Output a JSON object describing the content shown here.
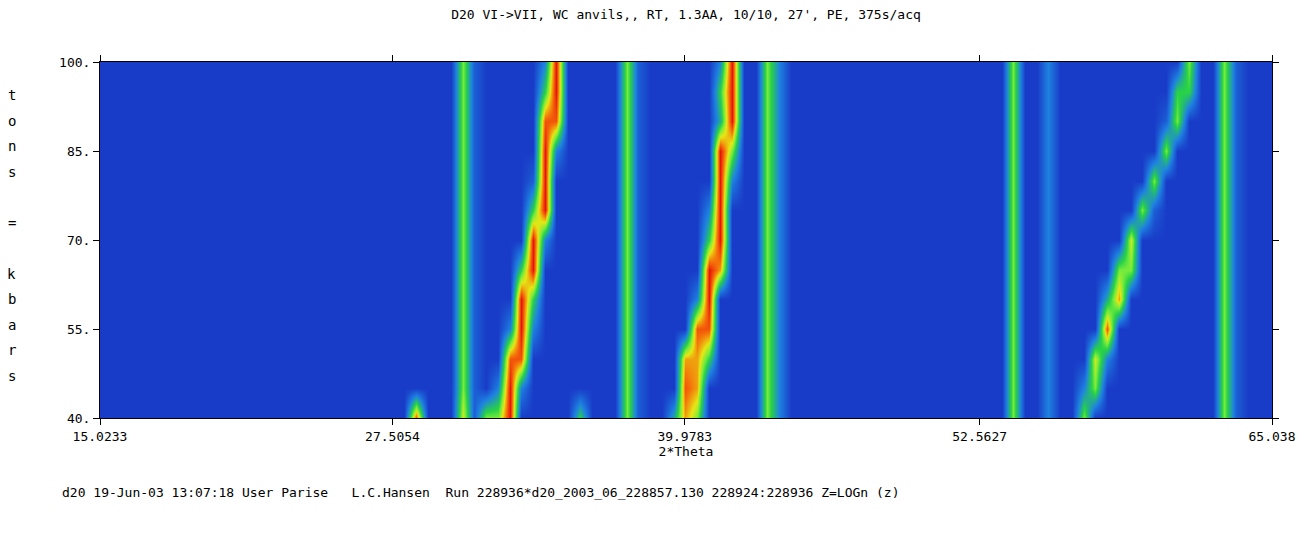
{
  "chart_data": {
    "type": "heatmap",
    "title": "D20 VI->VII, WC anvils,, RT, 1.3AA, 10/10, 27', PE, 375s/acq",
    "xlabel": "2*Theta",
    "ylabel": "tons = kbars",
    "footer": "d20 19-Jun-03 13:07:18 User Parise   L.C.Hansen  Run 228936*d20_2003_06_228857.130 228924:228936 Z=LOGn (z)",
    "xlim": [
      15.0233,
      65.038
    ],
    "xticks": [
      15.0233,
      27.5054,
      39.9783,
      52.5627,
      65.038
    ],
    "ylim": [
      40,
      100
    ],
    "yticks": [
      {
        "value": 40,
        "label": "40."
      },
      {
        "value": 55,
        "label": "55."
      },
      {
        "value": 70,
        "label": "70."
      },
      {
        "value": 85,
        "label": "85."
      },
      {
        "value": 100,
        "label": "100."
      }
    ],
    "zlim": [
      0,
      10
    ],
    "x": [
      15,
      15.5,
      16,
      16.5,
      17,
      17.5,
      18,
      18.5,
      19,
      19.5,
      20,
      20.5,
      21,
      21.5,
      22,
      22.5,
      23,
      23.5,
      24,
      24.5,
      25,
      25.5,
      26,
      26.5,
      27,
      27.5,
      28,
      28.5,
      29,
      29.5,
      30,
      30.5,
      31,
      31.5,
      32,
      32.5,
      33,
      33.5,
      34,
      34.5,
      35,
      35.5,
      36,
      36.5,
      37,
      37.5,
      38,
      38.5,
      39,
      39.5,
      40,
      40.5,
      41,
      41.5,
      42,
      42.5,
      43,
      43.5,
      44,
      44.5,
      45,
      45.5,
      46,
      46.5,
      47,
      47.5,
      48,
      48.5,
      49,
      49.5,
      50,
      50.5,
      51,
      51.5,
      52,
      52.5,
      53,
      53.5,
      54,
      54.5,
      55,
      55.5,
      56,
      56.5,
      57,
      57.5,
      58,
      58.5,
      59,
      59.5,
      60,
      60.5,
      61,
      61.5,
      62,
      62.5,
      63,
      63.5,
      64,
      64.5,
      65
    ],
    "y": [
      40,
      45,
      50,
      55,
      60,
      65,
      70,
      75,
      80,
      85,
      90,
      95,
      100
    ],
    "cells": [
      [
        1,
        1,
        1,
        1,
        1,
        1,
        1,
        1,
        1,
        1,
        1,
        1,
        1,
        1,
        1,
        1,
        1,
        1,
        1,
        1,
        1,
        1,
        1,
        1,
        1,
        1,
        1,
        9,
        1,
        1,
        1,
        7,
        2,
        6,
        6,
        10,
        1,
        1,
        1,
        1,
        1,
        5,
        1,
        1,
        1,
        6,
        2,
        1,
        1,
        4,
        8,
        6,
        1,
        1,
        1,
        1,
        1,
        6,
        3,
        1,
        1,
        1,
        1,
        1,
        1,
        1,
        1,
        1,
        1,
        1,
        1,
        1,
        1,
        1,
        1,
        1,
        1,
        1,
        6,
        1,
        1,
        3,
        1,
        1,
        6,
        1,
        1,
        1,
        1,
        1,
        1,
        1,
        1,
        1,
        1,
        1,
        6,
        2,
        1,
        1,
        1
      ],
      [
        1,
        1,
        1,
        1,
        1,
        1,
        1,
        1,
        1,
        1,
        1,
        1,
        1,
        1,
        1,
        1,
        1,
        1,
        1,
        1,
        1,
        1,
        1,
        1,
        1,
        1,
        1,
        1,
        1,
        1,
        1,
        6,
        2,
        1,
        3,
        10,
        3,
        1,
        1,
        1,
        1,
        1,
        1,
        1,
        1,
        6,
        2,
        1,
        1,
        1,
        9,
        8,
        1,
        1,
        1,
        1,
        1,
        6,
        3,
        1,
        1,
        1,
        1,
        1,
        1,
        1,
        1,
        1,
        1,
        1,
        1,
        1,
        1,
        1,
        1,
        1,
        1,
        1,
        6,
        1,
        1,
        3,
        1,
        1,
        3,
        6,
        1,
        1,
        1,
        1,
        1,
        1,
        1,
        1,
        1,
        1,
        6,
        2,
        1,
        1,
        1
      ],
      [
        1,
        1,
        1,
        1,
        1,
        1,
        1,
        1,
        1,
        1,
        1,
        1,
        1,
        1,
        1,
        1,
        1,
        1,
        1,
        1,
        1,
        1,
        1,
        1,
        1,
        1,
        1,
        1,
        1,
        1,
        1,
        6,
        2,
        1,
        1,
        9,
        9,
        1,
        1,
        1,
        1,
        1,
        1,
        1,
        1,
        6,
        2,
        1,
        1,
        1,
        8,
        8,
        5,
        1,
        1,
        1,
        1,
        6,
        3,
        1,
        1,
        1,
        1,
        1,
        1,
        1,
        1,
        1,
        1,
        1,
        1,
        1,
        1,
        1,
        1,
        1,
        1,
        1,
        6,
        1,
        1,
        3,
        1,
        1,
        1,
        7,
        3,
        1,
        1,
        1,
        1,
        1,
        1,
        1,
        1,
        1,
        6,
        2,
        1,
        1,
        1
      ],
      [
        1,
        1,
        1,
        1,
        1,
        1,
        1,
        1,
        1,
        1,
        1,
        1,
        1,
        1,
        1,
        1,
        1,
        1,
        1,
        1,
        1,
        1,
        1,
        1,
        1,
        1,
        1,
        1,
        1,
        1,
        1,
        6,
        2,
        1,
        1,
        3,
        10,
        3,
        1,
        1,
        1,
        1,
        1,
        1,
        1,
        6,
        2,
        1,
        1,
        1,
        1,
        9,
        9,
        1,
        1,
        1,
        1,
        6,
        3,
        1,
        1,
        1,
        1,
        1,
        1,
        1,
        1,
        1,
        1,
        1,
        1,
        1,
        1,
        1,
        1,
        1,
        1,
        1,
        6,
        1,
        1,
        3,
        1,
        1,
        1,
        1,
        9,
        1,
        1,
        1,
        1,
        1,
        1,
        1,
        1,
        1,
        6,
        2,
        1,
        1,
        1
      ],
      [
        1,
        1,
        1,
        1,
        1,
        1,
        1,
        1,
        1,
        1,
        1,
        1,
        1,
        1,
        1,
        1,
        1,
        1,
        1,
        1,
        1,
        1,
        1,
        1,
        1,
        1,
        1,
        1,
        1,
        1,
        1,
        6,
        2,
        1,
        1,
        1,
        10,
        5,
        1,
        1,
        1,
        1,
        1,
        1,
        1,
        6,
        2,
        1,
        1,
        1,
        1,
        3,
        10,
        1,
        1,
        1,
        1,
        6,
        3,
        1,
        1,
        1,
        1,
        1,
        1,
        1,
        1,
        1,
        1,
        1,
        1,
        1,
        1,
        1,
        1,
        1,
        1,
        1,
        6,
        1,
        1,
        3,
        1,
        1,
        1,
        1,
        4,
        8,
        1,
        1,
        1,
        1,
        1,
        1,
        1,
        1,
        6,
        2,
        1,
        1,
        1
      ],
      [
        1,
        1,
        1,
        1,
        1,
        1,
        1,
        1,
        1,
        1,
        1,
        1,
        1,
        1,
        1,
        1,
        1,
        1,
        1,
        1,
        1,
        1,
        1,
        1,
        1,
        1,
        1,
        1,
        1,
        1,
        1,
        6,
        2,
        1,
        1,
        1,
        5,
        10,
        1,
        1,
        1,
        1,
        1,
        1,
        1,
        6,
        2,
        1,
        1,
        1,
        1,
        1,
        10,
        8,
        1,
        1,
        1,
        6,
        3,
        1,
        1,
        1,
        1,
        1,
        1,
        1,
        1,
        1,
        1,
        1,
        1,
        1,
        1,
        1,
        1,
        1,
        1,
        1,
        6,
        1,
        1,
        3,
        1,
        1,
        1,
        1,
        1,
        6,
        6,
        1,
        1,
        1,
        1,
        1,
        1,
        1,
        6,
        2,
        1,
        1,
        1
      ],
      [
        1,
        1,
        1,
        1,
        1,
        1,
        1,
        1,
        1,
        1,
        1,
        1,
        1,
        1,
        1,
        1,
        1,
        1,
        1,
        1,
        1,
        1,
        1,
        1,
        1,
        1,
        1,
        1,
        1,
        1,
        1,
        6,
        2,
        1,
        1,
        1,
        1,
        10,
        3,
        1,
        1,
        1,
        1,
        1,
        1,
        6,
        2,
        1,
        1,
        1,
        1,
        1,
        5,
        10,
        1,
        1,
        1,
        6,
        3,
        1,
        1,
        1,
        1,
        1,
        1,
        1,
        1,
        1,
        1,
        1,
        1,
        1,
        1,
        1,
        1,
        1,
        1,
        1,
        6,
        1,
        1,
        3,
        1,
        1,
        1,
        1,
        1,
        1,
        7,
        1,
        1,
        1,
        1,
        1,
        1,
        1,
        6,
        2,
        1,
        1,
        1
      ],
      [
        1,
        1,
        1,
        1,
        1,
        1,
        1,
        1,
        1,
        1,
        1,
        1,
        1,
        1,
        1,
        1,
        1,
        1,
        1,
        1,
        1,
        1,
        1,
        1,
        1,
        1,
        1,
        1,
        1,
        1,
        1,
        6,
        2,
        1,
        1,
        1,
        1,
        5,
        10,
        1,
        1,
        1,
        1,
        1,
        1,
        6,
        2,
        1,
        1,
        1,
        1,
        1,
        3,
        10,
        1,
        1,
        1,
        6,
        3,
        1,
        1,
        1,
        1,
        1,
        1,
        1,
        1,
        1,
        1,
        1,
        1,
        1,
        1,
        1,
        1,
        1,
        1,
        1,
        6,
        1,
        1,
        3,
        1,
        1,
        1,
        1,
        1,
        1,
        1,
        6,
        2,
        1,
        1,
        1,
        1,
        1,
        6,
        2,
        1,
        1,
        1
      ],
      [
        1,
        1,
        1,
        1,
        1,
        1,
        1,
        1,
        1,
        1,
        1,
        1,
        1,
        1,
        1,
        1,
        1,
        1,
        1,
        1,
        1,
        1,
        1,
        1,
        1,
        1,
        1,
        1,
        1,
        1,
        1,
        6,
        2,
        1,
        1,
        1,
        1,
        2,
        10,
        1,
        1,
        1,
        1,
        1,
        1,
        6,
        2,
        1,
        1,
        1,
        1,
        1,
        1,
        10,
        3,
        1,
        1,
        6,
        3,
        1,
        1,
        1,
        1,
        1,
        1,
        1,
        1,
        1,
        1,
        1,
        1,
        1,
        1,
        1,
        1,
        1,
        1,
        1,
        6,
        1,
        1,
        3,
        1,
        1,
        1,
        1,
        1,
        1,
        1,
        1,
        6,
        1,
        1,
        1,
        1,
        1,
        6,
        2,
        1,
        1,
        1
      ],
      [
        1,
        1,
        1,
        1,
        1,
        1,
        1,
        1,
        1,
        1,
        1,
        1,
        1,
        1,
        1,
        1,
        1,
        1,
        1,
        1,
        1,
        1,
        1,
        1,
        1,
        1,
        1,
        1,
        1,
        1,
        1,
        6,
        2,
        1,
        1,
        1,
        1,
        1,
        10,
        3,
        1,
        1,
        1,
        1,
        1,
        6,
        2,
        1,
        1,
        1,
        1,
        1,
        1,
        10,
        6,
        1,
        1,
        6,
        3,
        1,
        1,
        1,
        1,
        1,
        1,
        1,
        1,
        1,
        1,
        1,
        1,
        1,
        1,
        1,
        1,
        1,
        1,
        1,
        6,
        1,
        1,
        3,
        1,
        1,
        1,
        1,
        1,
        1,
        1,
        1,
        1,
        6,
        1,
        1,
        1,
        1,
        6,
        2,
        1,
        1,
        1
      ],
      [
        1,
        1,
        1,
        1,
        1,
        1,
        1,
        1,
        1,
        1,
        1,
        1,
        1,
        1,
        1,
        1,
        1,
        1,
        1,
        1,
        1,
        1,
        1,
        1,
        1,
        1,
        1,
        1,
        1,
        1,
        1,
        6,
        2,
        1,
        1,
        1,
        1,
        1,
        9,
        9,
        1,
        1,
        1,
        1,
        1,
        6,
        2,
        1,
        1,
        1,
        1,
        1,
        1,
        4,
        10,
        1,
        1,
        6,
        3,
        1,
        1,
        1,
        1,
        1,
        1,
        1,
        1,
        1,
        1,
        1,
        1,
        1,
        1,
        1,
        1,
        1,
        1,
        1,
        6,
        1,
        1,
        3,
        1,
        1,
        1,
        1,
        1,
        1,
        1,
        1,
        1,
        2,
        6,
        1,
        1,
        1,
        6,
        2,
        1,
        1,
        1
      ],
      [
        1,
        1,
        1,
        1,
        1,
        1,
        1,
        1,
        1,
        1,
        1,
        1,
        1,
        1,
        1,
        1,
        1,
        1,
        1,
        1,
        1,
        1,
        1,
        1,
        1,
        1,
        1,
        1,
        1,
        1,
        1,
        6,
        2,
        1,
        1,
        1,
        1,
        1,
        5,
        10,
        1,
        1,
        1,
        1,
        1,
        6,
        2,
        1,
        1,
        1,
        1,
        1,
        1,
        5,
        10,
        1,
        1,
        6,
        3,
        1,
        1,
        1,
        1,
        1,
        1,
        1,
        1,
        1,
        1,
        1,
        1,
        1,
        1,
        1,
        1,
        1,
        1,
        1,
        6,
        1,
        1,
        3,
        1,
        1,
        1,
        1,
        1,
        1,
        1,
        1,
        1,
        1,
        5,
        5,
        1,
        1,
        6,
        2,
        1,
        1,
        1
      ],
      [
        1,
        1,
        1,
        1,
        1,
        1,
        1,
        1,
        1,
        1,
        1,
        1,
        1,
        1,
        1,
        1,
        1,
        1,
        1,
        1,
        1,
        1,
        1,
        1,
        1,
        1,
        1,
        1,
        1,
        1,
        1,
        6,
        2,
        1,
        1,
        1,
        1,
        1,
        3,
        10,
        1,
        1,
        1,
        1,
        1,
        6,
        2,
        1,
        1,
        1,
        1,
        1,
        1,
        3,
        10,
        1,
        1,
        6,
        3,
        1,
        1,
        1,
        1,
        1,
        1,
        1,
        1,
        1,
        1,
        1,
        1,
        1,
        1,
        1,
        1,
        1,
        1,
        1,
        6,
        1,
        1,
        3,
        1,
        1,
        1,
        1,
        1,
        1,
        1,
        1,
        1,
        1,
        1,
        6,
        1,
        1,
        6,
        2,
        1,
        1,
        1
      ]
    ]
  }
}
